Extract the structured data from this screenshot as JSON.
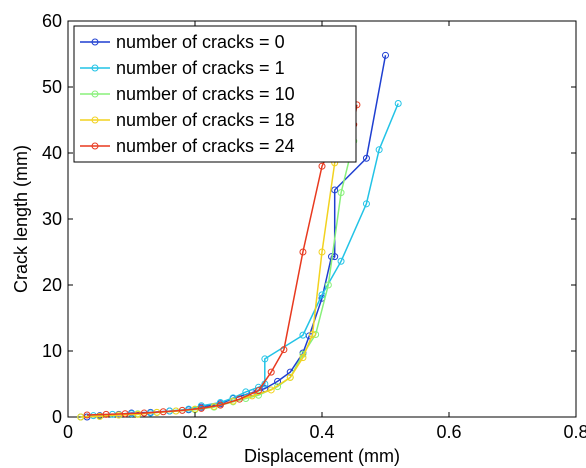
{
  "chart_data": {
    "type": "line",
    "xlabel": "Displacement (mm)",
    "ylabel": "Crack length (mm)",
    "xlim": [
      0,
      0.8
    ],
    "ylim": [
      0,
      60
    ],
    "xticks": [
      0,
      0.2,
      0.4,
      0.6,
      0.8
    ],
    "xtick_labels": [
      "0",
      "0.2",
      "0.4",
      "0.6",
      "0.8"
    ],
    "yticks": [
      0,
      10,
      20,
      30,
      40,
      50,
      60
    ],
    "ytick_labels": [
      "0",
      "10",
      "20",
      "30",
      "40",
      "50",
      "60"
    ],
    "grid": false,
    "legend_position": "top-left",
    "marker": "circle",
    "series": [
      {
        "name": "number of cracks = 0",
        "color": "#1f3fd1",
        "x": [
          0.03,
          0.05,
          0.08,
          0.1,
          0.13,
          0.16,
          0.19,
          0.21,
          0.24,
          0.26,
          0.29,
          0.31,
          0.33,
          0.35,
          0.37,
          0.38,
          0.4,
          0.415,
          0.42,
          0.42,
          0.47,
          0.5
        ],
        "y": [
          0.0,
          0.2,
          0.4,
          0.6,
          0.7,
          0.9,
          1.1,
          1.5,
          2.0,
          2.8,
          3.7,
          4.3,
          5.4,
          6.8,
          9.7,
          12.3,
          18.0,
          24.3,
          24.3,
          34.4,
          39.2,
          54.8
        ]
      },
      {
        "name": "number of cracks = 1",
        "color": "#22c3e6",
        "x": [
          0.02,
          0.04,
          0.07,
          0.1,
          0.13,
          0.16,
          0.19,
          0.21,
          0.24,
          0.26,
          0.28,
          0.3,
          0.31,
          0.31,
          0.37,
          0.4,
          0.43,
          0.47,
          0.49,
          0.52
        ],
        "y": [
          0.0,
          0.2,
          0.4,
          0.5,
          0.6,
          0.9,
          1.2,
          1.7,
          2.2,
          2.9,
          3.8,
          4.5,
          5.0,
          8.8,
          12.4,
          18.5,
          23.6,
          32.3,
          40.5,
          47.5
        ]
      },
      {
        "name": "number of cracks = 10",
        "color": "#88f07a",
        "x": [
          0.02,
          0.05,
          0.08,
          0.11,
          0.14,
          0.17,
          0.2,
          0.23,
          0.26,
          0.28,
          0.3,
          0.33,
          0.35,
          0.37,
          0.39,
          0.41,
          0.43,
          0.45
        ],
        "y": [
          0.0,
          0.1,
          0.3,
          0.5,
          0.7,
          0.9,
          1.1,
          1.5,
          2.3,
          2.8,
          3.3,
          4.6,
          6.0,
          9.5,
          12.5,
          20.0,
          34.0,
          41.8
        ]
      },
      {
        "name": "number of cracks = 18",
        "color": "#f2d21f",
        "x": [
          0.02,
          0.05,
          0.08,
          0.11,
          0.14,
          0.17,
          0.2,
          0.23,
          0.26,
          0.29,
          0.32,
          0.35,
          0.37,
          0.385,
          0.4,
          0.42,
          0.44
        ],
        "y": [
          0.0,
          0.1,
          0.3,
          0.4,
          0.7,
          0.9,
          1.2,
          1.6,
          2.4,
          3.2,
          4.1,
          6.0,
          9.0,
          12.5,
          25.0,
          38.5,
          44.0
        ]
      },
      {
        "name": "number of cracks = 24",
        "color": "#e8391f",
        "x": [
          0.03,
          0.06,
          0.09,
          0.12,
          0.15,
          0.18,
          0.21,
          0.24,
          0.27,
          0.3,
          0.32,
          0.34,
          0.37,
          0.4,
          0.43,
          0.45,
          0.455
        ],
        "y": [
          0.3,
          0.4,
          0.5,
          0.6,
          0.8,
          1.0,
          1.3,
          1.8,
          2.7,
          4.0,
          6.8,
          10.2,
          25.0,
          38.0,
          44.0,
          44.3,
          47.3
        ]
      }
    ]
  }
}
